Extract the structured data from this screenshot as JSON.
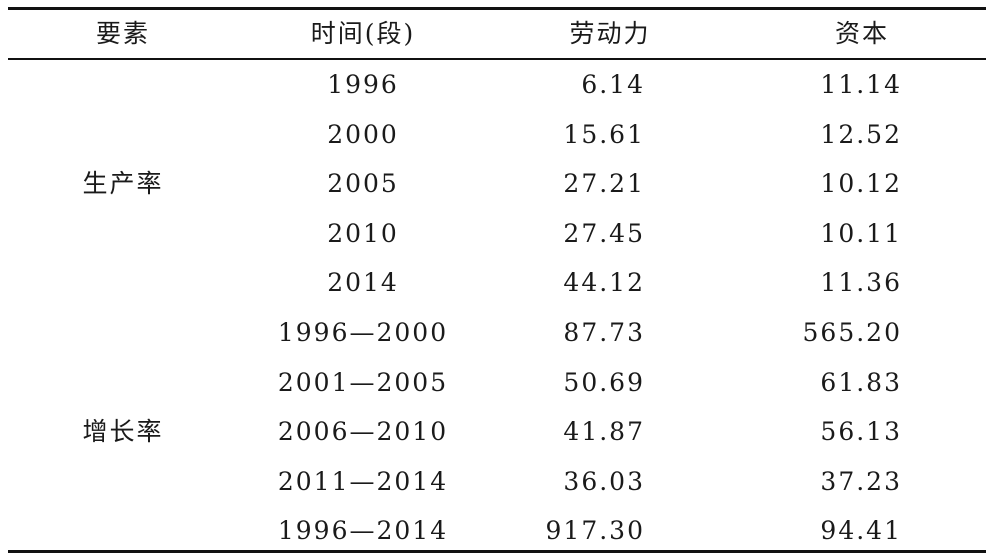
{
  "table": {
    "header": [
      "要素",
      "时间(段)",
      "劳动力",
      "资本"
    ],
    "groups": [
      {
        "label": "生产率",
        "rows": [
          [
            "1996",
            "6.14",
            "11.14"
          ],
          [
            "2000",
            "15.61",
            "12.52"
          ],
          [
            "2005",
            "27.21",
            "10.12"
          ],
          [
            "2010",
            "27.45",
            "10.11"
          ],
          [
            "2014",
            "44.12",
            "11.36"
          ]
        ]
      },
      {
        "label": "增长率",
        "rows": [
          [
            "1996—2000",
            "87.73",
            "565.20"
          ],
          [
            "2001—2005",
            "50.69",
            "61.83"
          ],
          [
            "2006—2010",
            "41.87",
            "56.13"
          ],
          [
            "2011—2014",
            "36.03",
            "37.23"
          ],
          [
            "1996—2014",
            "917.30",
            "94.41"
          ]
        ]
      }
    ]
  }
}
